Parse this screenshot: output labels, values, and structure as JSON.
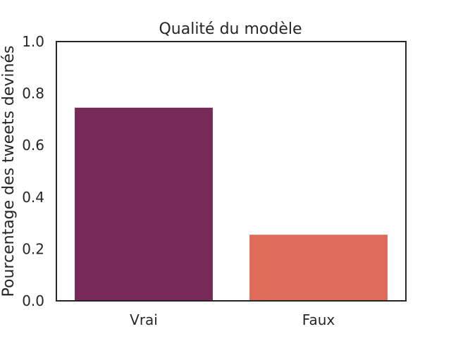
{
  "chart_data": {
    "type": "bar",
    "title": "Qualité du modèle",
    "xlabel": "",
    "ylabel": "Pourcentage des tweets devinés",
    "categories": [
      "Vrai",
      "Faux"
    ],
    "values": [
      0.745,
      0.255
    ],
    "colors": [
      "#762a58",
      "#de6c59"
    ],
    "ylim": [
      0,
      1.0
    ],
    "yticks": [
      "0.0",
      "0.2",
      "0.4",
      "0.6",
      "0.8",
      "1.0"
    ],
    "grid": false,
    "legend": "none"
  }
}
